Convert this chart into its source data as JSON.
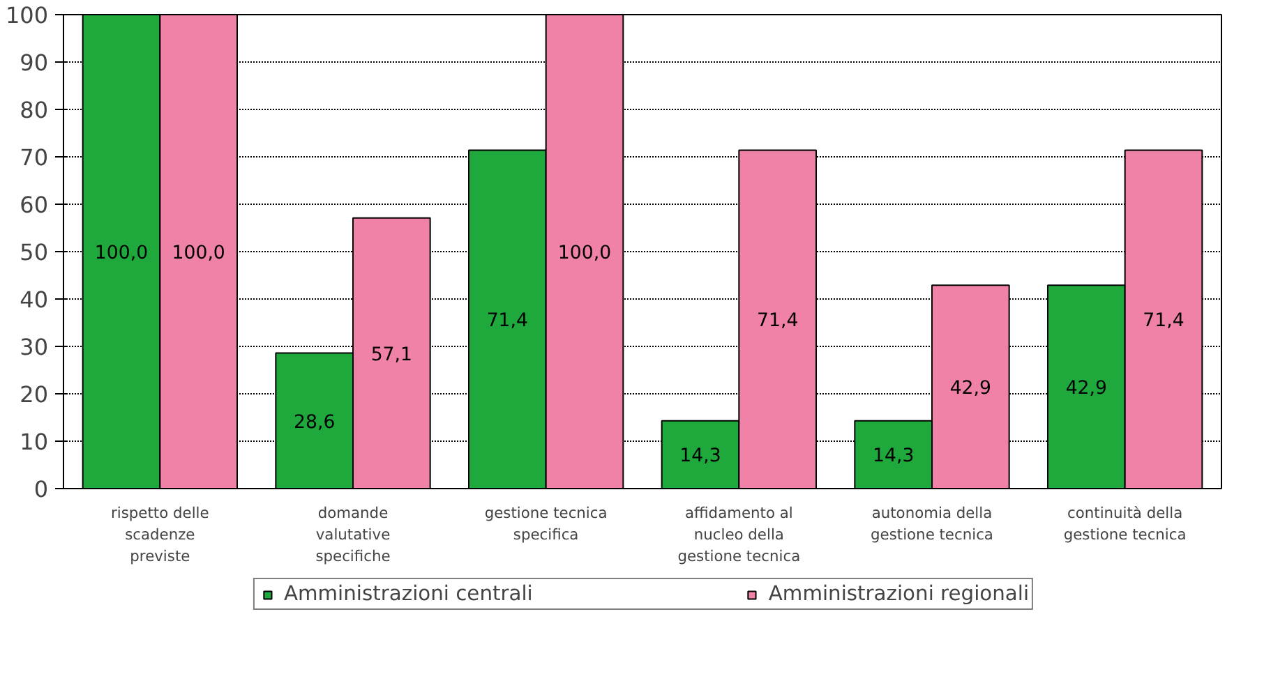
{
  "chart_data": {
    "type": "bar",
    "categories": [
      "rispetto delle\nscadenze\npreviste",
      "domande\nvalutative\nspecifiche",
      "gestione tecnica\nspecifica",
      "affidamento al\nnucleo della\ngestione tecnica",
      "autonomia della\ngestione tecnica",
      "continuità della\ngestione tecnica"
    ],
    "series": [
      {
        "name": "Amministrazioni centrali",
        "color": "#1fa83c",
        "values": [
          100,
          28.6,
          71.4,
          14.3,
          14.3,
          42.9
        ],
        "value_labels": [
          "100,0",
          "28,6",
          "71,4",
          "14,3",
          "14,3",
          "42,9"
        ]
      },
      {
        "name": "Amministrazioni regionali",
        "color": "#ef82a6",
        "values": [
          100,
          57.1,
          100,
          71.4,
          42.9,
          71.4
        ],
        "value_labels": [
          "100,0",
          "57,1",
          "100,0",
          "71,4",
          "42,9",
          "71,4"
        ]
      }
    ],
    "ylim": [
      0,
      100
    ],
    "yticks": [
      0,
      10,
      20,
      30,
      40,
      50,
      60,
      70,
      80,
      90,
      100
    ],
    "grid": "y",
    "legend": "bottom"
  }
}
